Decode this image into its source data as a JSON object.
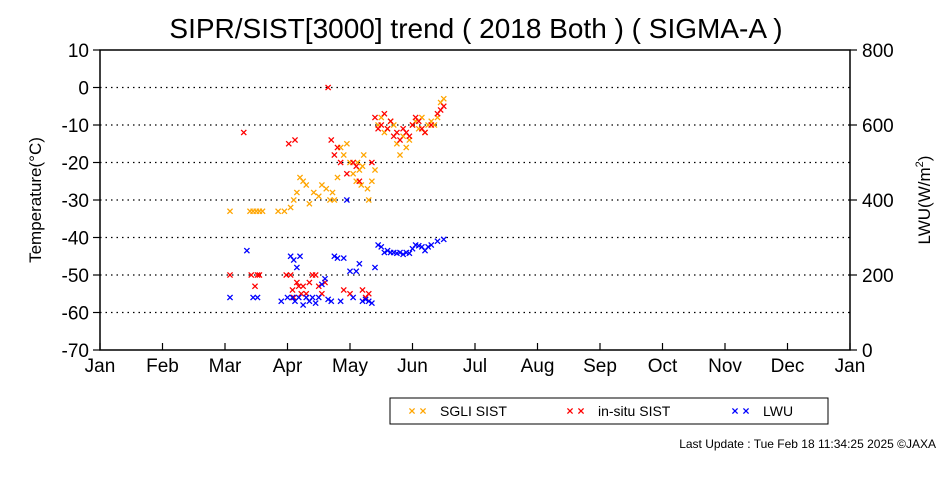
{
  "chart_data": {
    "type": "scatter",
    "title": "SIPR/SIST[3000] trend ( 2018 Both ) ( SIGMA-A )",
    "ylabel": "Temperature(°C)",
    "y2label_main": "LWU(W/m",
    "y2label_sup": "2",
    "y2label_end": ")",
    "ylim": [
      -70,
      10
    ],
    "y2lim": [
      0,
      800
    ],
    "yticks": [
      "10",
      "0",
      "-10",
      "-20",
      "-30",
      "-40",
      "-50",
      "-60",
      "-70"
    ],
    "y2ticks": [
      "800",
      "600",
      "400",
      "200",
      "0"
    ],
    "months": [
      "Jan",
      "Feb",
      "Mar",
      "Apr",
      "May",
      "Jun",
      "Jul",
      "Aug",
      "Sep",
      "Oct",
      "Nov",
      "Dec",
      "Jan"
    ],
    "x_unit": "month (fractional, 0 = Jan 1)",
    "grid": "horizontal dotted",
    "legend_position": "bottom",
    "series": [
      {
        "name": "SGLI SIST",
        "color": "#FFA500",
        "axis": "left",
        "x": [
          2.08,
          2.4,
          2.45,
          2.5,
          2.55,
          2.6,
          2.85,
          2.95,
          3.05,
          3.1,
          3.15,
          3.2,
          3.25,
          3.3,
          3.35,
          3.42,
          3.5,
          3.55,
          3.62,
          3.68,
          3.72,
          3.75,
          3.8,
          3.85,
          3.9,
          3.95,
          4.0,
          4.05,
          4.1,
          4.12,
          4.15,
          4.18,
          4.2,
          4.22,
          4.28,
          4.3,
          4.35,
          4.4,
          4.45,
          4.5,
          4.55,
          4.6,
          4.65,
          4.7,
          4.75,
          4.8,
          4.85,
          4.9,
          4.95,
          5.0,
          5.05,
          5.1,
          5.15,
          5.2,
          5.25,
          5.3,
          5.35,
          5.4,
          5.45,
          5.5
        ],
        "y": [
          -33,
          -33,
          -33,
          -33,
          -33,
          -33,
          -33,
          -33,
          -32,
          -30,
          -28,
          -24,
          -25,
          -26,
          -31,
          -28,
          -29,
          -26,
          -27,
          -30,
          -28,
          -30,
          -24,
          -16,
          -18,
          -15,
          -20,
          -23,
          -25,
          -20,
          -22,
          -26,
          -21,
          -18,
          -27,
          -30,
          -25,
          -22,
          -10,
          -8,
          -12,
          -11,
          -9,
          -10,
          -15,
          -18,
          -13,
          -16,
          -14,
          -10,
          -9,
          -11,
          -8,
          -12,
          -10,
          -9,
          -10,
          -8,
          -4,
          -3
        ]
      },
      {
        "name": "in-situ SIST",
        "color": "#FF0000",
        "axis": "left",
        "x": [
          2.08,
          2.3,
          2.42,
          2.48,
          2.52,
          2.55,
          2.98,
          3.02,
          3.05,
          3.08,
          3.1,
          3.12,
          3.15,
          3.18,
          3.22,
          3.25,
          3.3,
          3.35,
          3.4,
          3.45,
          3.5,
          3.55,
          3.6,
          3.65,
          3.7,
          3.75,
          3.8,
          3.85,
          3.9,
          3.95,
          4.0,
          4.05,
          4.1,
          4.15,
          4.2,
          4.25,
          4.3,
          4.35,
          4.4,
          4.45,
          4.5,
          4.55,
          4.6,
          4.65,
          4.7,
          4.75,
          4.8,
          4.85,
          4.9,
          4.95,
          5.0,
          5.05,
          5.1,
          5.15,
          5.2,
          5.3,
          5.4,
          5.45,
          5.5
        ],
        "y": [
          -50,
          -12,
          -50,
          -53,
          -50,
          -50,
          -50,
          -15,
          -50,
          -54,
          -56,
          -14,
          -52,
          -53,
          -55,
          -53,
          -55,
          -52,
          -50,
          -50,
          -53,
          -55,
          -52,
          0,
          -14,
          -18,
          -16,
          -20,
          -54,
          -23,
          -55,
          -20,
          -21,
          -25,
          -54,
          -56,
          -55,
          -20,
          -8,
          -11,
          -10,
          -7,
          -11,
          -9,
          -13,
          -12,
          -14,
          -11,
          -12,
          -13,
          -10,
          -8,
          -9,
          -11,
          -12,
          -10,
          -7,
          -6,
          -5
        ]
      },
      {
        "name": "LWU",
        "color": "#0000FF",
        "axis": "right",
        "x": [
          2.08,
          2.35,
          2.45,
          2.52,
          2.9,
          3.0,
          3.05,
          3.08,
          3.1,
          3.12,
          3.15,
          3.18,
          3.2,
          3.25,
          3.3,
          3.35,
          3.4,
          3.45,
          3.5,
          3.55,
          3.6,
          3.65,
          3.7,
          3.75,
          3.8,
          3.85,
          3.9,
          3.95,
          4.0,
          4.05,
          4.1,
          4.15,
          4.2,
          4.25,
          4.3,
          4.35,
          4.4,
          4.45,
          4.5,
          4.55,
          4.6,
          4.65,
          4.7,
          4.75,
          4.8,
          4.85,
          4.9,
          4.95,
          5.0,
          5.05,
          5.1,
          5.15,
          5.2,
          5.25,
          5.3,
          5.4,
          5.5
        ],
        "y": [
          140,
          265,
          140,
          140,
          130,
          140,
          250,
          140,
          240,
          130,
          220,
          140,
          250,
          120,
          140,
          130,
          140,
          125,
          140,
          175,
          190,
          135,
          130,
          250,
          245,
          130,
          245,
          400,
          210,
          140,
          210,
          230,
          130,
          135,
          130,
          125,
          220,
          280,
          275,
          260,
          265,
          260,
          260,
          258,
          260,
          255,
          260,
          258,
          270,
          280,
          278,
          275,
          265,
          275,
          280,
          290,
          295
        ]
      }
    ]
  },
  "footer": "Last Update : Tue Feb 18 11:34:25 2025  ©JAXA"
}
